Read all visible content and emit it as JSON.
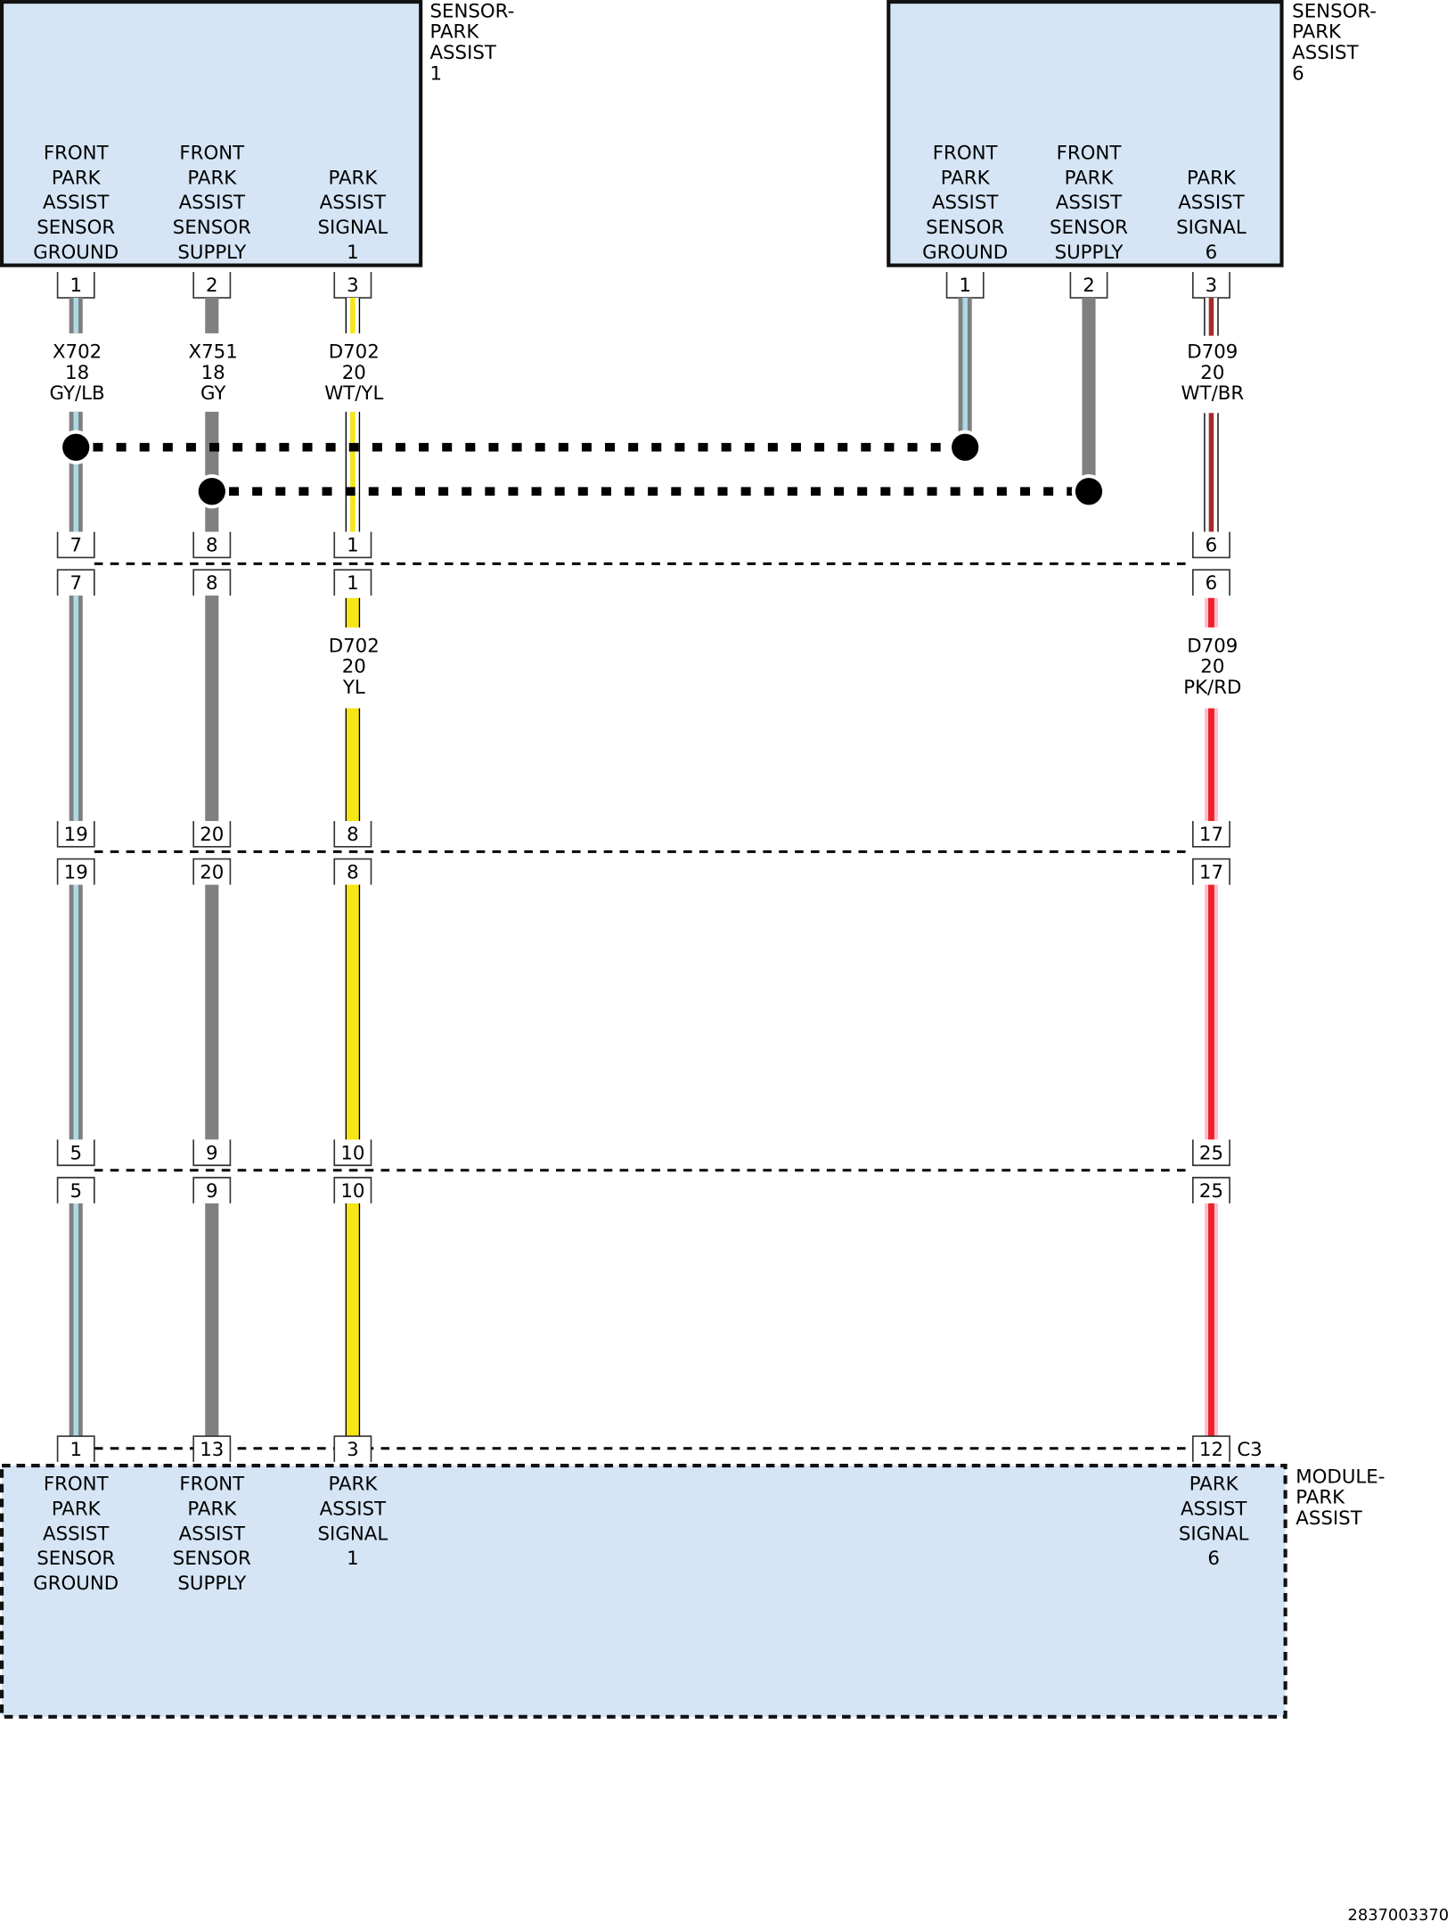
{
  "colors": {
    "component_fill": "#d5e5f5",
    "gray": "#808080",
    "light_blue": "#add8e6",
    "yellow": "#f5e614",
    "brown": "#a52a2a",
    "pink": "#f8c0cb",
    "red": "#ee2228"
  },
  "components": {
    "sensor1": {
      "name": [
        "SENSOR-",
        "PARK",
        "ASSIST",
        "1"
      ],
      "pins": [
        {
          "pin": "1",
          "label": [
            "FRONT",
            "PARK",
            "ASSIST",
            "SENSOR",
            "GROUND"
          ]
        },
        {
          "pin": "2",
          "label": [
            "FRONT",
            "PARK",
            "ASSIST",
            "SENSOR",
            "SUPPLY"
          ]
        },
        {
          "pin": "3",
          "label": [
            "PARK",
            "ASSIST",
            "SIGNAL",
            "1"
          ]
        }
      ]
    },
    "sensor6": {
      "name": [
        "SENSOR-",
        "PARK",
        "ASSIST",
        "6"
      ],
      "pins": [
        {
          "pin": "1",
          "label": [
            "FRONT",
            "PARK",
            "ASSIST",
            "SENSOR",
            "GROUND"
          ]
        },
        {
          "pin": "2",
          "label": [
            "FRONT",
            "PARK",
            "ASSIST",
            "SENSOR",
            "SUPPLY"
          ]
        },
        {
          "pin": "3",
          "label": [
            "PARK",
            "ASSIST",
            "SIGNAL",
            "6"
          ]
        }
      ]
    },
    "module": {
      "name": [
        "MODULE-",
        "PARK",
        "ASSIST"
      ],
      "connector": "C3",
      "pins": [
        {
          "pin": "1",
          "label": [
            "FRONT",
            "PARK",
            "ASSIST",
            "SENSOR",
            "GROUND"
          ]
        },
        {
          "pin": "13",
          "label": [
            "FRONT",
            "PARK",
            "ASSIST",
            "SENSOR",
            "SUPPLY"
          ]
        },
        {
          "pin": "3",
          "label": [
            "PARK",
            "ASSIST",
            "SIGNAL",
            "1"
          ]
        },
        {
          "pin": "12",
          "label": [
            "PARK",
            "ASSIST",
            "SIGNAL",
            "6"
          ]
        }
      ]
    }
  },
  "wire_labels": {
    "x702": [
      "X702",
      "18",
      "GY/LB"
    ],
    "x751": [
      "X751",
      "18",
      "GY"
    ],
    "d702_upper": [
      "D702",
      "20",
      "WT/YL"
    ],
    "d709_upper": [
      "D709",
      "20",
      "WT/BR"
    ],
    "d702_lower": [
      "D702",
      "20",
      "YL"
    ],
    "d709_lower": [
      "D709",
      "20",
      "PK/RD"
    ]
  },
  "inline_connectors": [
    {
      "pins": [
        "7",
        "8",
        "1",
        "6"
      ]
    },
    {
      "pins": [
        "19",
        "20",
        "8",
        "17"
      ]
    },
    {
      "pins": [
        "5",
        "9",
        "10",
        "25"
      ]
    }
  ],
  "footer_id": "2837003370"
}
